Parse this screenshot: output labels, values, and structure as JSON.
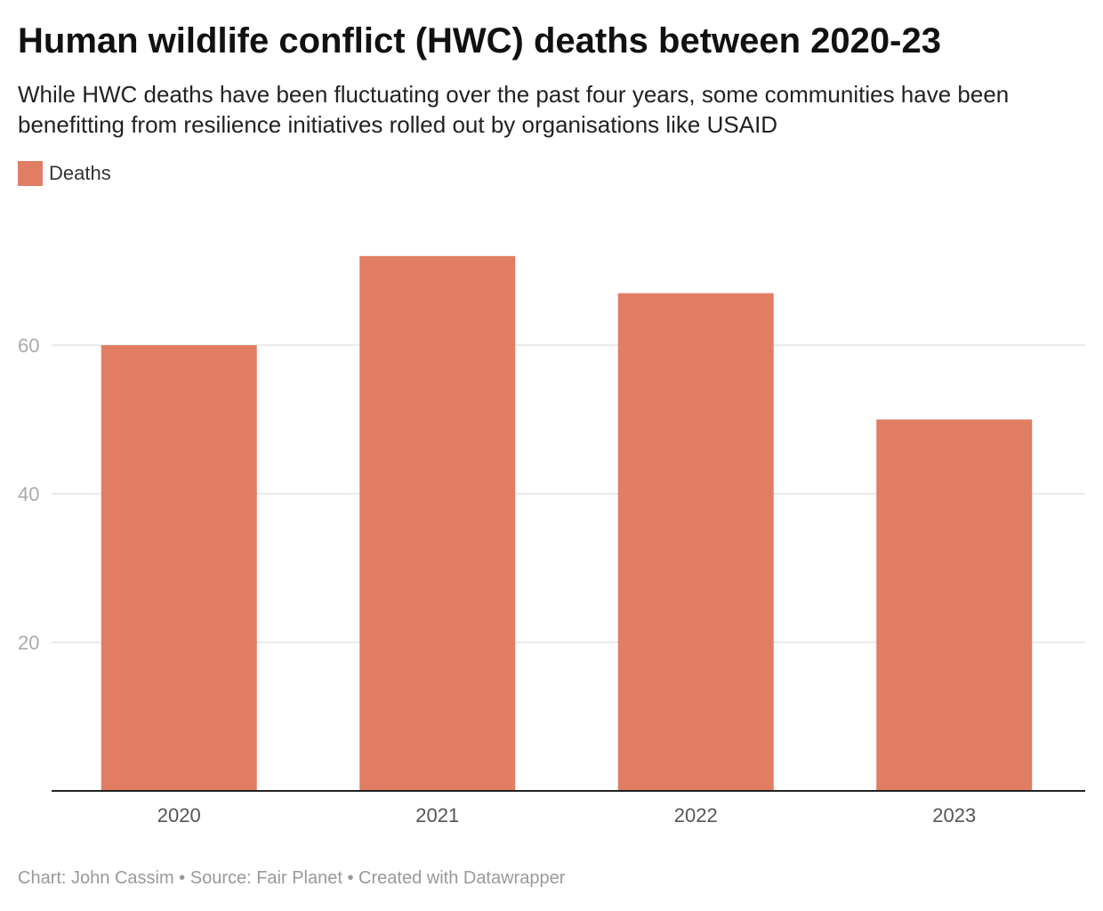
{
  "title": "Human wildlife conflict (HWC) deaths between 2020-23",
  "subtitle": "While HWC deaths have been fluctuating over the past four years, some communities have been benefitting from resilience initiatives rolled out by organisations like USAID",
  "legend": {
    "label": "Deaths",
    "color": "#e07d63"
  },
  "footer": {
    "text": "Chart: John Cassim • Source: Fair Planet • Created with Datawrapper"
  },
  "colors": {
    "bar": "#e07d63",
    "gridline": "#e4e4e4",
    "baseline": "#222222"
  },
  "chart_data": {
    "type": "bar",
    "categories": [
      "2020",
      "2021",
      "2022",
      "2023"
    ],
    "series": [
      {
        "name": "Deaths",
        "values": [
          60,
          72,
          67,
          50
        ]
      }
    ],
    "yticks": [
      20,
      40,
      60
    ],
    "ylim": [
      0,
      80
    ],
    "grid": true,
    "legend": "top-left"
  }
}
